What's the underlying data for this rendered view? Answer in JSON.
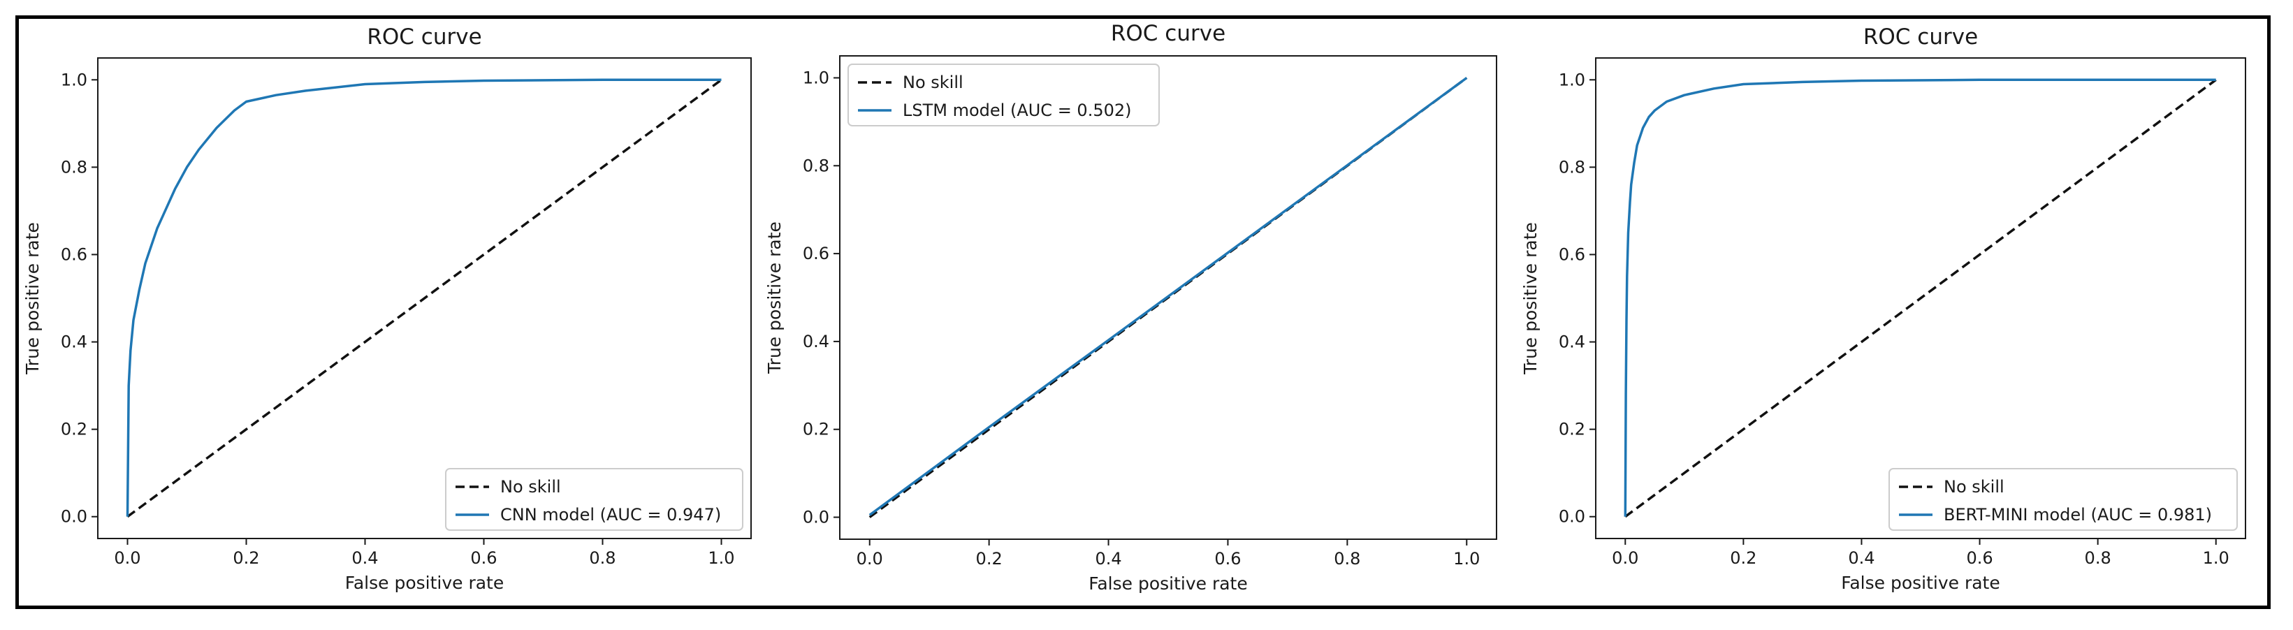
{
  "chart_data": [
    {
      "type": "line",
      "title": "ROC curve",
      "xlabel": "False positive rate",
      "ylabel": "True positive rate",
      "xlim": [
        0,
        1
      ],
      "ylim": [
        0,
        1
      ],
      "xticks": [
        "0.0",
        "0.2",
        "0.4",
        "0.6",
        "0.8",
        "1.0"
      ],
      "yticks": [
        "0.0",
        "0.2",
        "0.4",
        "0.6",
        "0.8",
        "1.0"
      ],
      "legend_position": "lower-right",
      "series": [
        {
          "name": "No skill",
          "style": "dashed",
          "color": "#111111",
          "x": [
            0,
            1
          ],
          "y": [
            0,
            1
          ]
        },
        {
          "name": "CNN model (AUC = 0.947)",
          "style": "solid",
          "color": "#1f77b4",
          "x": [
            0,
            0.002,
            0.005,
            0.01,
            0.02,
            0.03,
            0.04,
            0.05,
            0.06,
            0.08,
            0.1,
            0.12,
            0.15,
            0.18,
            0.2,
            0.25,
            0.3,
            0.4,
            0.5,
            0.6,
            0.8,
            1.0
          ],
          "y": [
            0,
            0.3,
            0.38,
            0.45,
            0.52,
            0.58,
            0.62,
            0.66,
            0.69,
            0.75,
            0.8,
            0.84,
            0.89,
            0.93,
            0.95,
            0.965,
            0.975,
            0.99,
            0.995,
            0.998,
            1.0,
            1.0
          ]
        }
      ]
    },
    {
      "type": "line",
      "title": "ROC curve",
      "xlabel": "False positive rate",
      "ylabel": "True positive rate",
      "xlim": [
        0,
        1
      ],
      "ylim": [
        0,
        1
      ],
      "xticks": [
        "0.0",
        "0.2",
        "0.4",
        "0.6",
        "0.8",
        "1.0"
      ],
      "yticks": [
        "0.0",
        "0.2",
        "0.4",
        "0.6",
        "0.8",
        "1.0"
      ],
      "legend_position": "top-left",
      "series": [
        {
          "name": "No skill",
          "style": "dashed",
          "color": "#111111",
          "x": [
            0,
            1
          ],
          "y": [
            0,
            1
          ]
        },
        {
          "name": "LSTM model (AUC = 0.502)",
          "style": "solid",
          "color": "#1f77b4",
          "x": [
            0,
            0.1,
            0.2,
            0.4,
            0.6,
            0.8,
            1.0
          ],
          "y": [
            0.005,
            0.105,
            0.205,
            0.403,
            0.602,
            0.801,
            1.0
          ]
        }
      ]
    },
    {
      "type": "line",
      "title": "ROC curve",
      "xlabel": "False positive rate",
      "ylabel": "True positive rate",
      "xlim": [
        0,
        1
      ],
      "ylim": [
        0,
        1
      ],
      "xticks": [
        "0.0",
        "0.2",
        "0.4",
        "0.6",
        "0.8",
        "1.0"
      ],
      "yticks": [
        "0.0",
        "0.2",
        "0.4",
        "0.6",
        "0.8",
        "1.0"
      ],
      "legend_position": "lower-right",
      "series": [
        {
          "name": "No skill",
          "style": "dashed",
          "color": "#111111",
          "x": [
            0,
            1
          ],
          "y": [
            0,
            1
          ]
        },
        {
          "name": "BERT-MINI model (AUC = 0.981)",
          "style": "solid",
          "color": "#1f77b4",
          "x": [
            0,
            0.001,
            0.002,
            0.003,
            0.005,
            0.008,
            0.01,
            0.015,
            0.02,
            0.03,
            0.04,
            0.05,
            0.07,
            0.1,
            0.15,
            0.2,
            0.3,
            0.4,
            0.6,
            1.0
          ],
          "y": [
            0,
            0.28,
            0.45,
            0.55,
            0.65,
            0.72,
            0.76,
            0.81,
            0.85,
            0.89,
            0.915,
            0.93,
            0.95,
            0.965,
            0.98,
            0.99,
            0.995,
            0.998,
            1.0,
            1.0
          ]
        }
      ]
    }
  ]
}
